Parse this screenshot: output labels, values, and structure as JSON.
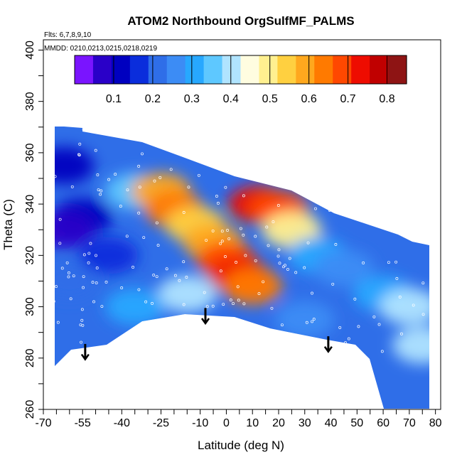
{
  "chart_data": {
    "type": "heatmap",
    "title": "ATOM2 Northbound OrgSulfMF_PALMS",
    "flights_note": "Flts: 6,7,8,9,10",
    "dates_note": "MMDD: 0210,0213,0215,0218,0219",
    "xlabel": "Latitude (deg N)",
    "ylabel": "Theta (C)",
    "xlim": [
      -70,
      82
    ],
    "ylim": [
      260,
      404
    ],
    "x_tick_labels": [
      "-70",
      "-55",
      "-40",
      "-25",
      "-10",
      "0",
      "10",
      "20",
      "30",
      "40",
      "50",
      "60",
      "70",
      "80"
    ],
    "y_tick_labels": [
      "260",
      "280",
      "300",
      "320",
      "340",
      "360",
      "380",
      "400"
    ],
    "colorbar": {
      "range": [
        0.0,
        0.85
      ],
      "tick_labels": [
        "0.1",
        "0.2",
        "0.3",
        "0.4",
        "0.5",
        "0.6",
        "0.7",
        "0.8"
      ],
      "colors": [
        "#7a14ff",
        "#2a00c8",
        "#0000c0",
        "#0a2ddc",
        "#2f6ee8",
        "#3c8cf5",
        "#27a8ff",
        "#5ec8ff",
        "#b0e4ff",
        "#fffde0",
        "#fff090",
        "#ffd040",
        "#ffa81e",
        "#ff7a00",
        "#ff4800",
        "#ee0c00",
        "#c00000",
        "#8e1414"
      ]
    },
    "field_samples": [
      {
        "lat": -62,
        "theta": 355,
        "value": 0.1
      },
      {
        "lat": -55,
        "theta": 335,
        "value": 0.12
      },
      {
        "lat": -62,
        "theta": 330,
        "value": 0.08
      },
      {
        "lat": -60,
        "theta": 310,
        "value": 0.2
      },
      {
        "lat": -45,
        "theta": 320,
        "value": 0.18
      },
      {
        "lat": -35,
        "theta": 345,
        "value": 0.35
      },
      {
        "lat": -25,
        "theta": 345,
        "value": 0.58
      },
      {
        "lat": -20,
        "theta": 338,
        "value": 0.65
      },
      {
        "lat": -12,
        "theta": 332,
        "value": 0.55
      },
      {
        "lat": -5,
        "theta": 325,
        "value": 0.6
      },
      {
        "lat": 0,
        "theta": 318,
        "value": 0.68
      },
      {
        "lat": 5,
        "theta": 312,
        "value": 0.72
      },
      {
        "lat": 10,
        "theta": 308,
        "value": 0.62
      },
      {
        "lat": 12,
        "theta": 340,
        "value": 0.72
      },
      {
        "lat": 20,
        "theta": 338,
        "value": 0.7
      },
      {
        "lat": 25,
        "theta": 330,
        "value": 0.48
      },
      {
        "lat": 35,
        "theta": 320,
        "value": 0.3
      },
      {
        "lat": 45,
        "theta": 315,
        "value": 0.28
      },
      {
        "lat": 60,
        "theta": 305,
        "value": 0.3
      },
      {
        "lat": 70,
        "theta": 300,
        "value": 0.42
      },
      {
        "lat": 75,
        "theta": 285,
        "value": 0.4
      },
      {
        "lat": -15,
        "theta": 305,
        "value": 0.4
      },
      {
        "lat": -35,
        "theta": 300,
        "value": 0.3
      },
      {
        "lat": 30,
        "theta": 295,
        "value": 0.28
      }
    ],
    "profile_arrows_lat": [
      -54,
      -8,
      39
    ],
    "annotations": [
      "MMDD: 0210,0213,0215,0218,0219",
      "Flts: 6,7,8,9,10"
    ]
  }
}
